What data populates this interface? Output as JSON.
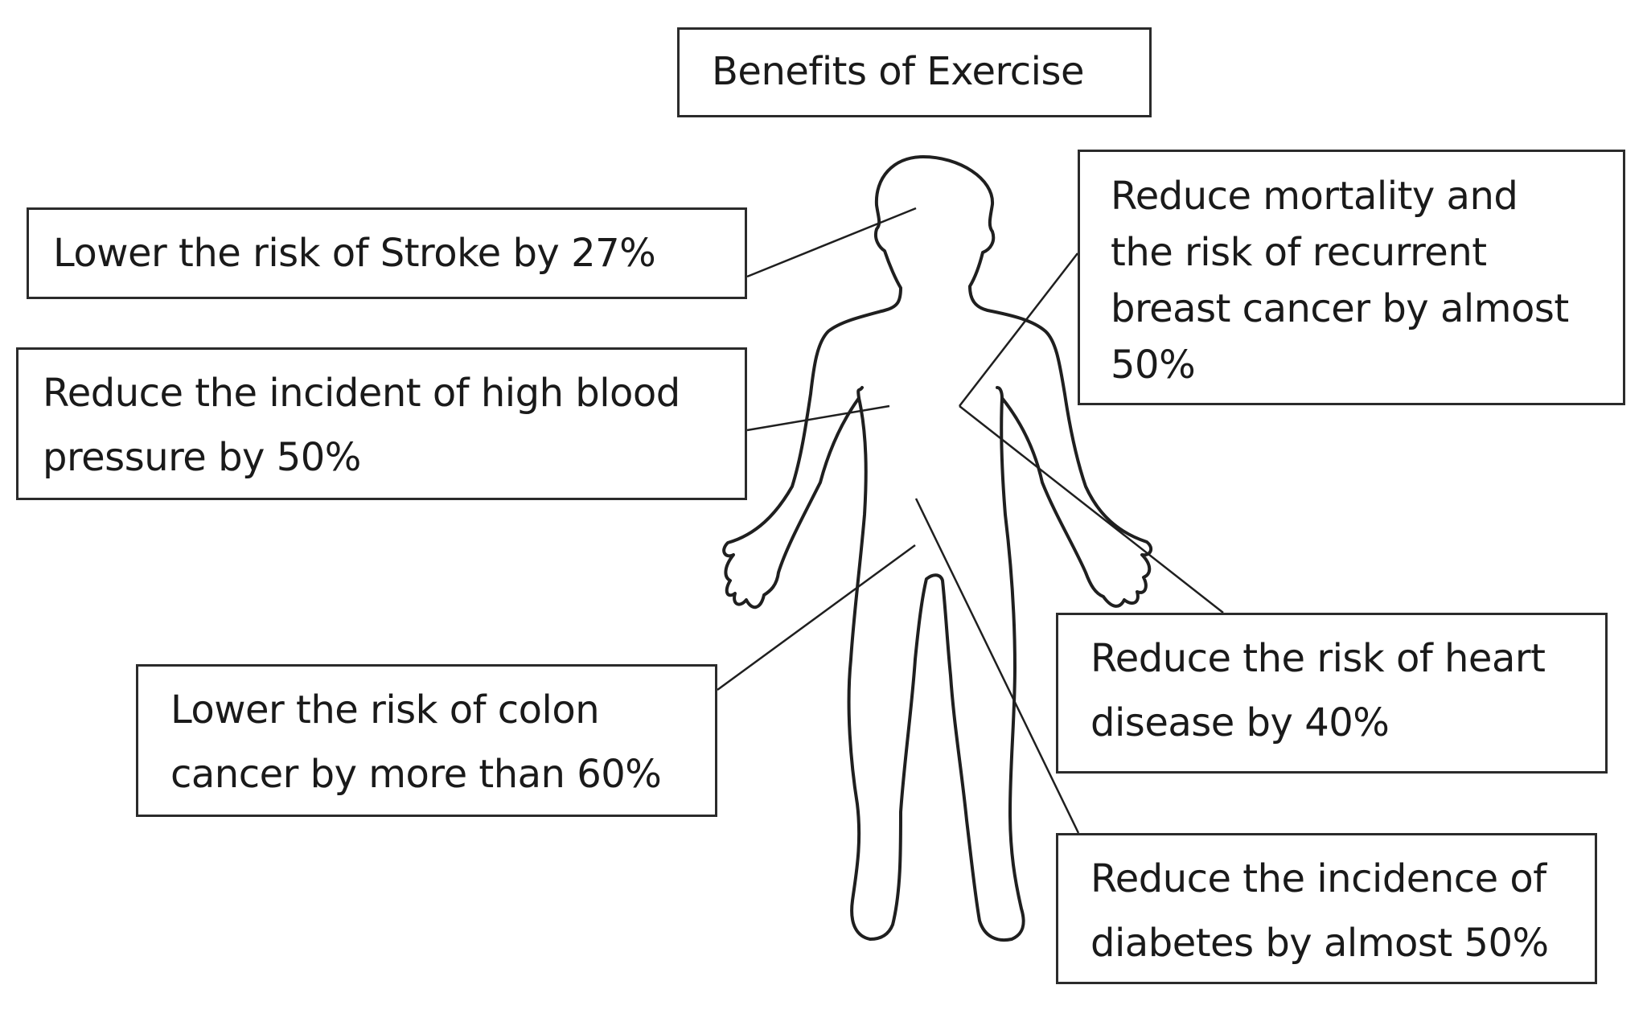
{
  "title": "Benefits of Exercise",
  "callouts": {
    "stroke": [
      "Lower the risk of Stroke by 27%"
    ],
    "blood_pressure": [
      "Reduce the incident of high blood",
      "pressure by 50%"
    ],
    "colon": [
      "Lower the risk of colon",
      "cancer by more than 60%"
    ],
    "breast": [
      "Reduce mortality and",
      "the risk of recurrent",
      "breast cancer by almost",
      "50%"
    ],
    "heart": [
      "Reduce the risk of heart",
      "disease by 40%"
    ],
    "diabetes": [
      "Reduce the incidence of",
      "diabetes by almost 50%"
    ]
  }
}
